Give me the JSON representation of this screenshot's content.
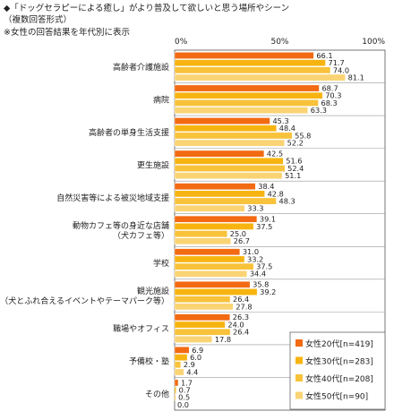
{
  "header": {
    "title": "◆「ドッグセラピーによる癒し」がより普及して欲しいと思う場所やシーン",
    "subtitle": "（複数回答形式）",
    "note": "※女性の回答結果を年代別に表示"
  },
  "chart_data": {
    "type": "bar",
    "orientation": "horizontal",
    "xlim": [
      0,
      100
    ],
    "x_ticks": [
      "0%",
      "50%",
      "100%"
    ],
    "grid": false,
    "legend_position": "bottom-right",
    "categories": [
      [
        "高齢者介護施設"
      ],
      [
        "病院"
      ],
      [
        "高齢者の単身生活支援"
      ],
      [
        "更生施設"
      ],
      [
        "自然災害等による被災地域支援"
      ],
      [
        "動物カフェ等の身近な店舗",
        "（犬カフェ等）"
      ],
      [
        "学校"
      ],
      [
        "観光施設",
        "（犬とふれ合えるイベントやテーマパーク等）"
      ],
      [
        "職場やオフィス"
      ],
      [
        "予備校・塾"
      ],
      [
        "その他"
      ]
    ],
    "series": [
      {
        "name": "女性20代[n=419]",
        "color": "#f26a12",
        "values": [
          66.1,
          68.7,
          45.3,
          42.5,
          38.4,
          39.1,
          31.0,
          35.8,
          26.3,
          6.9,
          1.7
        ]
      },
      {
        "name": "女性30代[n=283]",
        "color": "#f7b411",
        "values": [
          71.7,
          70.3,
          48.4,
          51.6,
          42.8,
          37.5,
          33.2,
          39.2,
          24.0,
          6.0,
          0.7
        ]
      },
      {
        "name": "女性40代[n=208]",
        "color": "#f8c23a",
        "values": [
          74.0,
          68.3,
          55.8,
          52.4,
          48.3,
          25.0,
          37.5,
          26.4,
          26.4,
          2.9,
          0.5
        ]
      },
      {
        "name": "女性50代[n=90]",
        "color": "#fad474",
        "values": [
          81.1,
          63.3,
          52.2,
          51.1,
          33.3,
          26.7,
          34.4,
          27.8,
          17.8,
          4.4,
          0.0
        ]
      }
    ]
  }
}
